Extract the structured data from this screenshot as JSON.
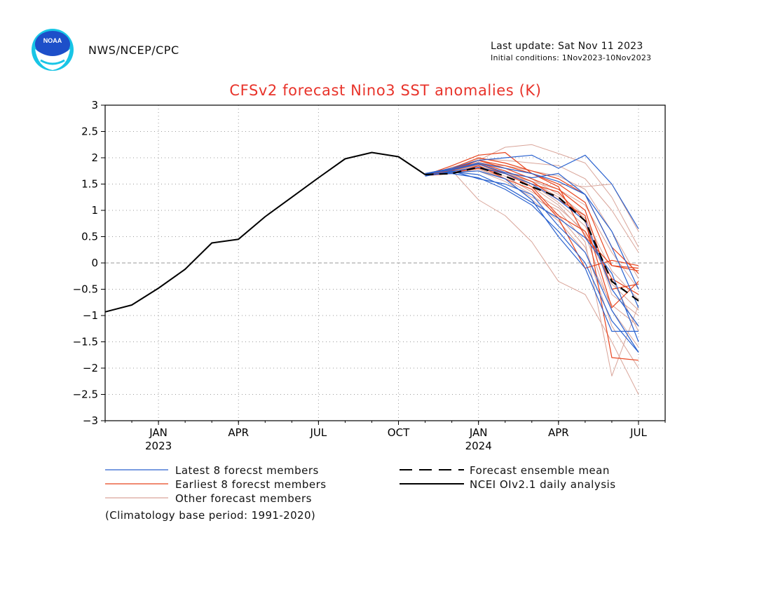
{
  "header": {
    "org": "NWS/NCEP/CPC",
    "last_update": "Last update: Sat Nov 11 2023",
    "initial_conditions": "Initial conditions: 1Nov2023-10Nov2023",
    "logo_text": "NOAA"
  },
  "colors": {
    "title": "#e8332a",
    "observed": "#000000",
    "mean": "#000000",
    "latest": "#2a62cf",
    "earliest": "#e8451f",
    "other": "#d9a59a"
  },
  "chart_data": {
    "type": "line",
    "title": "CFSv2 forecast Nino3 SST anomalies (K)",
    "xlabel": "",
    "ylabel": "",
    "ylim": [
      -3,
      3
    ],
    "xlim": [
      0,
      21
    ],
    "yticks": [
      -3,
      -2.5,
      -2,
      -1.5,
      -1,
      -0.5,
      0,
      0.5,
      1,
      1.5,
      2,
      2.5,
      3
    ],
    "ytick_labels": [
      "−3",
      "−2.5",
      "−2",
      "−1.5",
      "−1",
      "−0.5",
      "0",
      "0.5",
      "1",
      "1.5",
      "2",
      "2.5",
      "3"
    ],
    "xticks": [
      {
        "x": 2,
        "label": "JAN",
        "sub": "2023"
      },
      {
        "x": 5,
        "label": "APR",
        "sub": ""
      },
      {
        "x": 8,
        "label": "JUL",
        "sub": ""
      },
      {
        "x": 11,
        "label": "OCT",
        "sub": ""
      },
      {
        "x": 14,
        "label": "JAN",
        "sub": "2024"
      },
      {
        "x": 17,
        "label": "APR",
        "sub": ""
      },
      {
        "x": 20,
        "label": "JUL",
        "sub": ""
      }
    ],
    "grid": true,
    "zero_line": true,
    "legend": [
      {
        "label": "Latest 8 forecst members",
        "key": "latest",
        "style": "solid"
      },
      {
        "label": "Earliest 8 forecst members",
        "key": "earliest",
        "style": "solid"
      },
      {
        "label": "Other forecast members",
        "key": "other",
        "style": "solid"
      },
      {
        "label": "Forecast ensemble mean",
        "key": "mean",
        "style": "dashed"
      },
      {
        "label": "NCEI OIv2.1 daily analysis",
        "key": "observed",
        "style": "solid"
      }
    ],
    "observed": {
      "x": [
        0,
        1,
        2,
        3,
        4,
        5,
        6,
        7,
        8,
        9,
        10,
        11,
        12
      ],
      "y": [
        -0.93,
        -0.8,
        -0.48,
        -0.12,
        0.38,
        0.45,
        0.88,
        1.25,
        1.62,
        1.98,
        2.1,
        2.02,
        1.68
      ]
    },
    "ensemble_mean": {
      "x": [
        12,
        13,
        14,
        15,
        16,
        17,
        18,
        19,
        20
      ],
      "y": [
        1.68,
        1.7,
        1.82,
        1.65,
        1.45,
        1.25,
        0.8,
        -0.35,
        -0.72
      ]
    },
    "forecast_x": [
      12,
      13,
      14,
      15,
      16,
      17,
      18,
      19,
      20
    ],
    "latest_members": [
      [
        1.65,
        1.75,
        1.6,
        1.5,
        1.3,
        0.7,
        0.2,
        -0.9,
        -1.7
      ],
      [
        1.7,
        1.8,
        1.95,
        2.0,
        2.05,
        1.8,
        2.05,
        1.5,
        0.65
      ],
      [
        1.66,
        1.72,
        1.75,
        1.6,
        1.2,
        0.5,
        -0.1,
        -1.3,
        -1.3
      ],
      [
        1.68,
        1.7,
        1.62,
        1.4,
        1.1,
        0.6,
        0.0,
        -1.1,
        -1.7
      ],
      [
        1.7,
        1.78,
        1.9,
        1.8,
        1.7,
        1.55,
        1.3,
        0.3,
        -0.85
      ],
      [
        1.67,
        1.74,
        1.82,
        1.7,
        1.5,
        1.2,
        0.8,
        -0.5,
        -1.2
      ],
      [
        1.69,
        1.77,
        1.88,
        1.72,
        1.62,
        1.7,
        1.3,
        0.6,
        -0.5
      ],
      [
        1.66,
        1.73,
        1.68,
        1.45,
        1.15,
        0.85,
        0.48,
        -0.2,
        -1.5
      ]
    ],
    "earliest_members": [
      [
        1.67,
        1.85,
        2.05,
        2.1,
        1.7,
        1.45,
        0.5,
        -0.05,
        -0.1
      ],
      [
        1.68,
        1.75,
        1.95,
        1.8,
        1.6,
        1.4,
        1.0,
        -0.5,
        -0.4
      ],
      [
        1.7,
        1.8,
        1.9,
        1.75,
        1.55,
        1.2,
        0.9,
        -1.8,
        -1.85
      ],
      [
        1.66,
        1.7,
        1.85,
        1.6,
        1.4,
        0.85,
        -0.1,
        0.05,
        -0.05
      ],
      [
        1.69,
        1.78,
        1.95,
        1.85,
        1.7,
        1.5,
        1.15,
        -0.05,
        -0.15
      ],
      [
        1.68,
        1.72,
        1.8,
        1.7,
        1.5,
        1.35,
        0.8,
        -0.85,
        -0.35
      ],
      [
        1.67,
        1.8,
        2.0,
        1.9,
        1.75,
        1.6,
        1.3,
        0.3,
        -0.2
      ],
      [
        1.7,
        1.76,
        1.88,
        1.7,
        1.45,
        0.9,
        0.6,
        -0.3,
        -0.6
      ]
    ],
    "other_members": [
      [
        1.66,
        1.82,
        1.95,
        2.2,
        2.25,
        2.08,
        1.9,
        1.25,
        0.3
      ],
      [
        1.7,
        1.76,
        1.2,
        0.9,
        0.4,
        -0.35,
        -0.6,
        -1.5,
        -2.5
      ],
      [
        1.68,
        1.74,
        1.9,
        1.75,
        1.5,
        1.15,
        0.7,
        -0.3,
        -1.3
      ],
      [
        1.67,
        1.72,
        1.8,
        1.6,
        1.2,
        0.8,
        0.2,
        -0.8,
        -1.2
      ],
      [
        1.69,
        1.78,
        1.86,
        1.85,
        1.75,
        1.65,
        1.4,
        0.6,
        -0.3
      ],
      [
        1.68,
        1.75,
        1.92,
        1.8,
        1.6,
        1.3,
        0.9,
        -0.6,
        -1.0
      ],
      [
        1.66,
        1.71,
        1.75,
        1.55,
        1.25,
        1.0,
        0.4,
        -2.15,
        -0.8
      ],
      [
        1.7,
        1.77,
        1.85,
        1.7,
        1.55,
        1.4,
        1.1,
        0.2,
        -0.5
      ],
      [
        1.67,
        1.73,
        1.88,
        1.8,
        1.7,
        1.5,
        1.45,
        1.5,
        0.6
      ],
      [
        1.68,
        1.76,
        1.9,
        1.75,
        1.45,
        1.1,
        0.55,
        -0.9,
        -1.6
      ],
      [
        1.69,
        1.74,
        1.82,
        1.65,
        1.35,
        1.05,
        0.6,
        -0.4,
        -0.9
      ],
      [
        1.67,
        1.79,
        1.98,
        1.95,
        1.9,
        1.85,
        1.6,
        1.0,
        0.2
      ],
      [
        1.68,
        1.72,
        1.78,
        1.6,
        1.3,
        0.9,
        0.3,
        -1.2,
        -2.0
      ],
      [
        1.66,
        1.75,
        1.84,
        1.7,
        1.55,
        1.25,
        0.85,
        -0.15,
        -0.7
      ]
    ],
    "footnote": "(Climatology base period: 1991-2020)"
  }
}
